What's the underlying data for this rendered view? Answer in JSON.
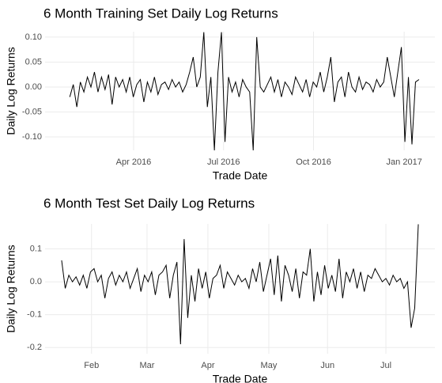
{
  "chart_data": [
    {
      "type": "line",
      "title": "6 Month Training Set Daily Log Returns",
      "x_label": "Trade Date",
      "y_label": "Daily Log Returns",
      "color": "#000000",
      "grid": true,
      "xlim": [
        -7,
        103.5
      ],
      "ylim": [
        -0.127,
        0.111
      ],
      "xticks": [
        {
          "value": 18.1,
          "label": "Apr 2016"
        },
        {
          "value": 43.6,
          "label": "Jul 2016"
        },
        {
          "value": 69.1,
          "label": "Oct 2016"
        },
        {
          "value": 94.8,
          "label": "Jan 2017"
        }
      ],
      "yticks": [
        {
          "value": -0.1,
          "label": "-0.10"
        },
        -0.05,
        {
          "value": 0,
          "label": "0.00"
        },
        0.05,
        {
          "value": 0.1,
          "label": "0.10"
        }
      ],
      "values": [
        -0.02,
        0.005,
        -0.04,
        0.01,
        -0.01,
        0.02,
        0.0,
        0.03,
        -0.01,
        0.02,
        -0.005,
        0.025,
        -0.035,
        0.02,
        0.0,
        0.015,
        -0.01,
        0.02,
        -0.02,
        0.005,
        0.015,
        -0.03,
        0.01,
        -0.01,
        0.02,
        -0.015,
        0.005,
        0.01,
        -0.005,
        0.015,
        0.0,
        0.01,
        -0.01,
        0.005,
        0.03,
        0.06,
        0.0,
        0.02,
        0.11,
        -0.04,
        0.02,
        -0.127,
        0.03,
        0.11,
        -0.11,
        0.02,
        -0.01,
        0.01,
        -0.02,
        0.015,
        0.0,
        -0.01,
        -0.127,
        0.1,
        0.0,
        -0.01,
        0.005,
        0.02,
        -0.01,
        0.015,
        -0.02,
        0.01,
        0.0,
        -0.015,
        0.02,
        0.005,
        -0.01,
        0.015,
        -0.02,
        0.01,
        0.0,
        0.03,
        -0.01,
        0.02,
        0.06,
        -0.03,
        0.01,
        0.02,
        -0.02,
        0.03,
        0.0,
        -0.01,
        0.02,
        -0.005,
        0.01,
        0.005,
        -0.01,
        0.015,
        0.0,
        0.01,
        0.06,
        0.02,
        -0.02,
        0.03,
        0.08,
        -0.11,
        0.02,
        -0.115,
        0.01,
        0.015
      ]
    },
    {
      "type": "line",
      "title": "6 Month Test Set Daily Log Returns",
      "x_label": "Trade Date",
      "y_label": "Daily Log Returns",
      "color": "#000000",
      "grid": true,
      "xlim": [
        -4.6,
        103.6
      ],
      "ylim": [
        -0.219,
        0.176
      ],
      "xticks": [
        {
          "value": 8.3,
          "label": "Feb"
        },
        {
          "value": 23.7,
          "label": "Mar"
        },
        {
          "value": 40.6,
          "label": "Apr"
        },
        {
          "value": 57.5,
          "label": "May"
        },
        {
          "value": 73.8,
          "label": "Jun"
        },
        {
          "value": 90.0,
          "label": "Jul"
        }
      ],
      "yticks": [
        -0.2,
        -0.1,
        {
          "value": 0,
          "label": "0.0"
        },
        0.1
      ],
      "values": [
        0.065,
        -0.02,
        0.02,
        0.0,
        0.015,
        -0.01,
        0.02,
        -0.02,
        0.03,
        0.04,
        0.0,
        0.02,
        -0.05,
        0.01,
        0.03,
        -0.01,
        0.02,
        0.0,
        0.03,
        -0.02,
        0.01,
        0.04,
        -0.03,
        0.02,
        0.0,
        0.03,
        -0.04,
        0.02,
        0.03,
        0.05,
        -0.05,
        0.02,
        0.06,
        -0.19,
        0.13,
        -0.11,
        0.02,
        -0.06,
        0.04,
        -0.02,
        0.03,
        -0.05,
        0.01,
        0.02,
        0.05,
        -0.02,
        0.03,
        0.01,
        -0.01,
        0.02,
        0.0,
        0.01,
        -0.02,
        0.04,
        0.0,
        0.06,
        -0.03,
        0.02,
        0.07,
        -0.04,
        0.08,
        -0.06,
        0.05,
        0.02,
        -0.03,
        0.04,
        -0.05,
        0.03,
        0.02,
        0.1,
        -0.06,
        0.03,
        -0.04,
        0.05,
        -0.02,
        0.02,
        -0.03,
        0.07,
        -0.05,
        0.03,
        0.0,
        0.04,
        -0.02,
        0.03,
        -0.03,
        0.02,
        0.01,
        0.04,
        0.02,
        0.0,
        0.01,
        -0.01,
        0.02,
        0.0,
        0.01,
        -0.02,
        0.0,
        -0.14,
        -0.08,
        0.175
      ]
    }
  ]
}
